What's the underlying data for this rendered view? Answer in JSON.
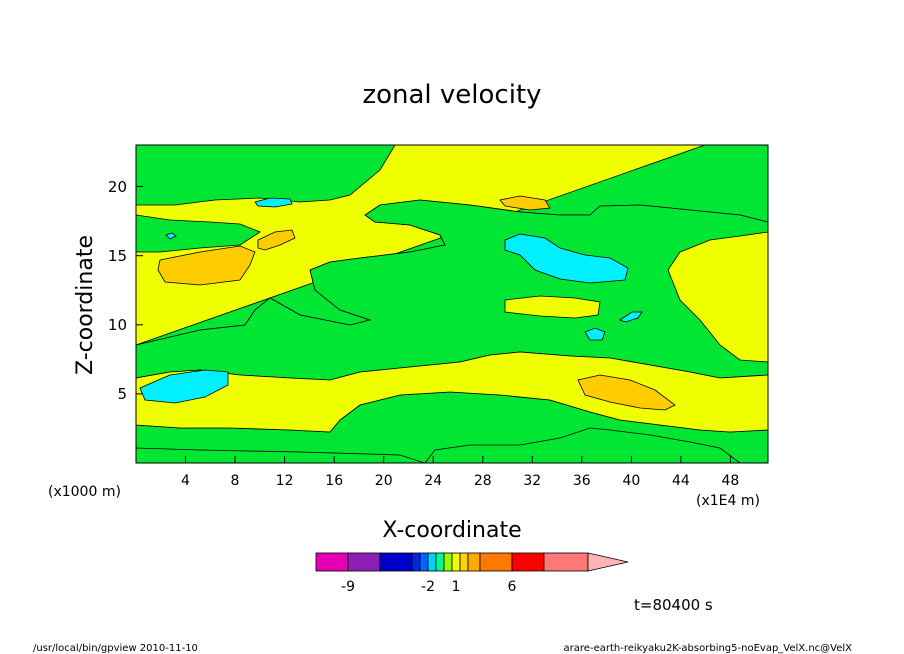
{
  "chart_data": {
    "type": "heatmap",
    "title": "zonal velocity",
    "xlabel": "X-coordinate",
    "ylabel": "Z-coordinate",
    "x_unit_label": "(x1E4 m)",
    "y_unit_label": "(x1000 m)",
    "xlim": [
      0,
      51
    ],
    "ylim": [
      0,
      23
    ],
    "x_ticks": [
      "4",
      "8",
      "12",
      "16",
      "20",
      "24",
      "28",
      "32",
      "36",
      "40",
      "44",
      "48"
    ],
    "y_ticks": [
      "5",
      "10",
      "15",
      "20"
    ],
    "x_tick_values": [
      4,
      8,
      12,
      16,
      20,
      24,
      28,
      32,
      36,
      40,
      44,
      48
    ],
    "y_tick_values": [
      5,
      10,
      15,
      20
    ],
    "colorbar": {
      "colors": [
        "#e600b4",
        "#8c1eb4",
        "#0000c8",
        "#0028dc",
        "#0064ff",
        "#00d2ff",
        "#00fa96",
        "#96fa00",
        "#f0ff00",
        "#ffd200",
        "#ffaa00",
        "#ff7800",
        "#ff3c00",
        "#ff0000",
        "#ff7878",
        "#ffb4b4"
      ],
      "tick_labels": [
        "-9",
        "-2",
        "1",
        "6"
      ]
    },
    "regions": [
      {
        "value_class": "green (~0)",
        "color": "#00e632"
      },
      {
        "value_class": "yellow (0 to 1)",
        "color": "#f0ff00"
      },
      {
        "value_class": "orange (1 to 2)",
        "color": "#ffcc00"
      },
      {
        "value_class": "cyan (-1 to 0)",
        "color": "#00f0ff"
      }
    ],
    "grid": false
  },
  "annotation": {
    "time": "t=80400 s"
  },
  "footer": {
    "left": "/usr/local/bin/gpview  2010-11-10",
    "right": "arare-earth-reikyaku2K-absorbing5-noEvap_VelX.nc@VelX"
  }
}
